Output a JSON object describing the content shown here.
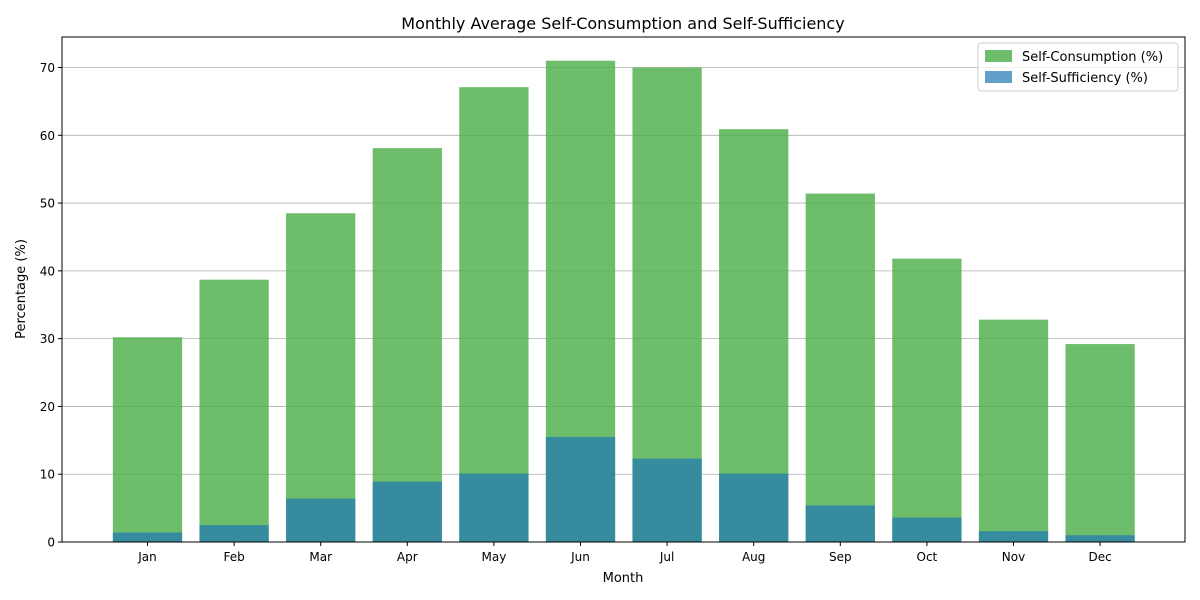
{
  "chart_data": {
    "type": "bar",
    "title": "Monthly Average Self-Consumption and Self-Sufficiency",
    "xlabel": "Month",
    "ylabel": "Percentage (%)",
    "categories": [
      "Jan",
      "Feb",
      "Mar",
      "Apr",
      "May",
      "Jun",
      "Jul",
      "Aug",
      "Sep",
      "Oct",
      "Nov",
      "Dec"
    ],
    "series": [
      {
        "name": "Self-Consumption (%)",
        "color": "#4daf4a",
        "opacity": 0.82,
        "values": [
          30.2,
          38.7,
          48.5,
          58.1,
          67.1,
          71.0,
          70.0,
          60.9,
          51.4,
          41.8,
          32.8,
          29.2
        ]
      },
      {
        "name": "Self-Sufficiency (%)",
        "color": "#1f77b4",
        "opacity": 0.7,
        "values": [
          1.4,
          2.5,
          6.4,
          8.9,
          10.1,
          15.5,
          12.3,
          10.1,
          5.4,
          3.6,
          1.6,
          1.0
        ]
      }
    ],
    "ylim": [
      0,
      74.5
    ],
    "yticks": [
      0,
      10,
      20,
      30,
      40,
      50,
      60,
      70
    ],
    "grid": "horizontal",
    "legend_position": "top-right"
  }
}
